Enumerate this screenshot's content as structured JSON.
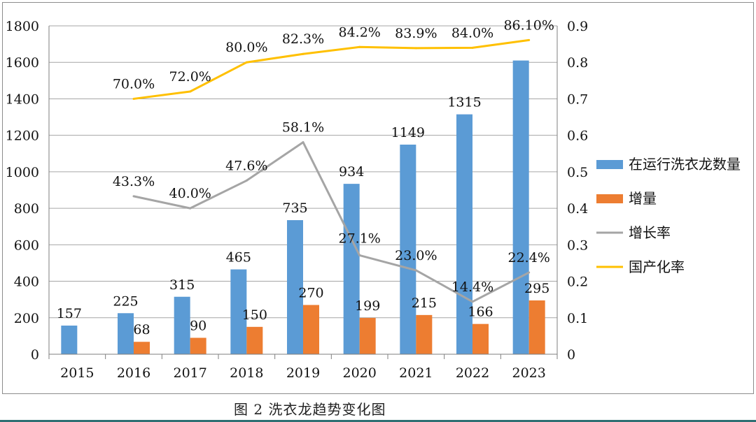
{
  "figure": {
    "caption": "图 2  洗衣龙趋势变化图"
  },
  "chart_data": {
    "type": "bar",
    "categories": [
      "2015",
      "2016",
      "2017",
      "2018",
      "2019",
      "2020",
      "2021",
      "2022",
      "2023"
    ],
    "y_left": {
      "min": 0,
      "max": 1800,
      "ticks": [
        0,
        200,
        400,
        600,
        800,
        1000,
        1200,
        1400,
        1600,
        1800
      ]
    },
    "y_right": {
      "min": 0,
      "max": 0.9,
      "ticks": [
        "0",
        "0.1",
        "0.2",
        "0.3",
        "0.4",
        "0.5",
        "0.6",
        "0.7",
        "0.8",
        "0.9"
      ]
    },
    "grid": true,
    "legend_position": "right",
    "series": [
      {
        "name": "在运行洗衣龙数量",
        "kind": "bar",
        "axis": "left",
        "color": "#5b9bd5",
        "values": [
          157,
          225,
          315,
          465,
          735,
          934,
          1149,
          1315,
          1610
        ],
        "labels": [
          "157",
          "225",
          "315",
          "465",
          "735",
          "934",
          "1149",
          "1315",
          ""
        ]
      },
      {
        "name": "增量",
        "kind": "bar",
        "axis": "left",
        "color": "#ed7d31",
        "values": [
          null,
          68,
          90,
          150,
          270,
          199,
          215,
          166,
          295
        ],
        "labels": [
          "",
          "68",
          "90",
          "150",
          "270",
          "199",
          "215",
          "166",
          "295"
        ]
      },
      {
        "name": "增长率",
        "kind": "line",
        "axis": "right",
        "color": "#a5a5a5",
        "values": [
          null,
          0.433,
          0.4,
          0.476,
          0.581,
          0.271,
          0.23,
          0.144,
          0.224
        ],
        "labels": [
          "",
          "43.3%",
          "40.0%",
          "47.6%",
          "58.1%",
          "27.1%",
          "23.0%",
          "14.4%",
          "22.4%"
        ]
      },
      {
        "name": "国产化率",
        "kind": "line",
        "axis": "right",
        "color": "#ffc000",
        "values": [
          null,
          0.7,
          0.72,
          0.8,
          0.823,
          0.842,
          0.839,
          0.84,
          0.861
        ],
        "labels": [
          "",
          "70.0%",
          "72.0%",
          "80.0%",
          "82.3%",
          "84.2%",
          "83.9%",
          "84.0%",
          "86.10%"
        ]
      }
    ]
  }
}
